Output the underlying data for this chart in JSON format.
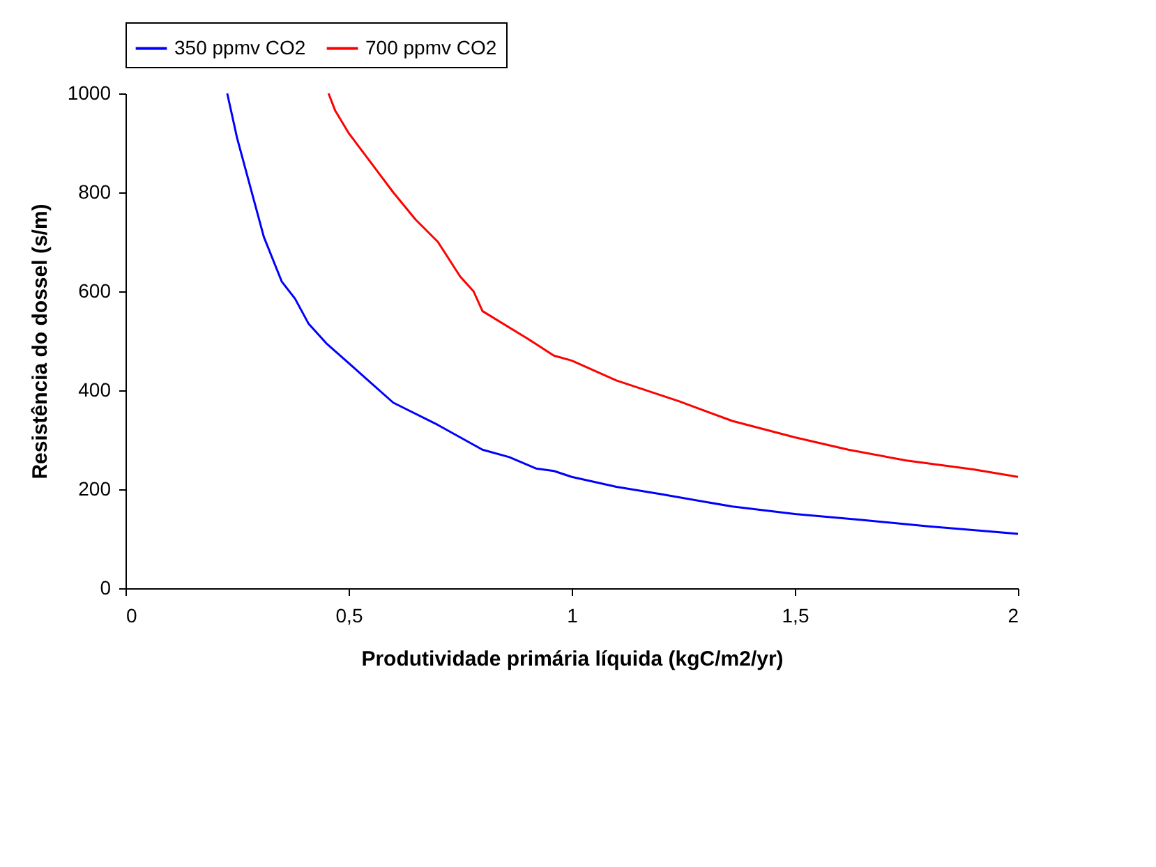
{
  "chart_data": {
    "type": "line",
    "xlabel": "Produtividade primária líquida (kgC/m2/yr)",
    "ylabel": "Resistência do dossel (s/m)",
    "xlim": [
      0,
      2
    ],
    "xticks": [
      0,
      {
        "value": 0.5,
        "label": "0,5"
      },
      1,
      {
        "value": 1.5,
        "label": "1,5"
      },
      2
    ],
    "ylim": [
      0,
      1000
    ],
    "yticks": [
      0,
      200,
      400,
      600,
      800,
      1000
    ],
    "grid": false,
    "legend": "top",
    "marker": "none",
    "line_style": "solid",
    "series": [
      {
        "name": "350 ppmv CO2",
        "color": "#0000ff",
        "x": [
          0.228,
          0.25,
          0.28,
          0.31,
          0.35,
          0.38,
          0.41,
          0.45,
          0.5,
          0.55,
          0.6,
          0.7,
          0.8,
          0.86,
          0.92,
          0.96,
          1.0,
          1.1,
          1.2,
          1.36,
          1.5,
          1.65,
          1.8,
          2.0
        ],
        "values": [
          1000,
          910,
          810,
          710,
          620,
          585,
          535,
          495,
          455,
          415,
          375,
          330,
          280,
          265,
          242,
          237,
          225,
          205,
          190,
          165,
          150,
          138,
          125,
          110
        ]
      },
      {
        "name": "700 ppmv CO2",
        "color": "#ff0000",
        "x": [
          0.455,
          0.47,
          0.5,
          0.55,
          0.6,
          0.65,
          0.7,
          0.75,
          0.78,
          0.8,
          0.9,
          0.96,
          1.0,
          1.1,
          1.2,
          1.24,
          1.36,
          1.5,
          1.62,
          1.75,
          1.9,
          2.0
        ],
        "values": [
          1000,
          965,
          920,
          860,
          800,
          745,
          700,
          630,
          600,
          560,
          505,
          470,
          460,
          420,
          390,
          378,
          338,
          305,
          280,
          258,
          240,
          225
        ]
      }
    ]
  }
}
